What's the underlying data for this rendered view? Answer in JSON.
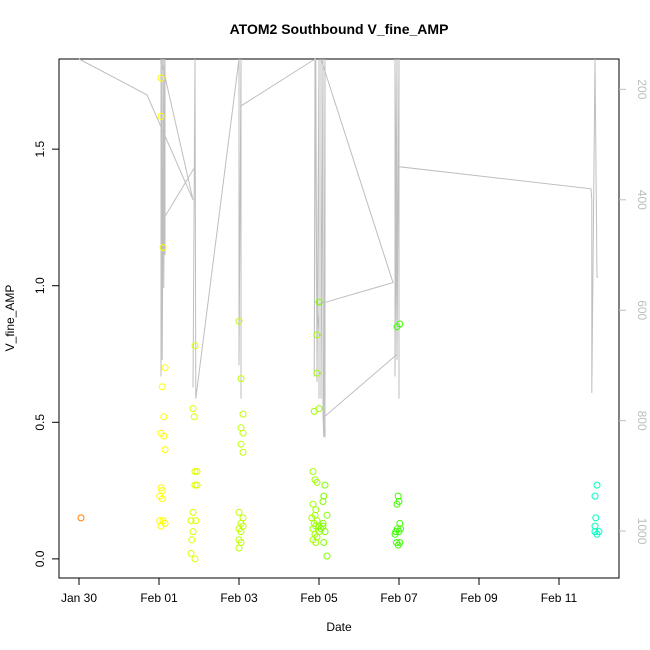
{
  "chart_data": {
    "type": "scatter",
    "title": "ATOM2 Southbound V_fine_AMP",
    "xlabel": "Date",
    "ylabel": "V_fine_AMP",
    "xlim": [
      -2.5,
      11.5
    ],
    "ylim": [
      -0.07,
      1.83
    ],
    "x_unit_note": "Jan 30 = -2, Feb 01 = 0, Feb 03 = 2 ...",
    "x_ticks": [
      {
        "v": -2,
        "label": "Jan 30"
      },
      {
        "v": 0,
        "label": "Feb 01"
      },
      {
        "v": 2,
        "label": "Feb 03"
      },
      {
        "v": 4,
        "label": "Feb 05"
      },
      {
        "v": 6,
        "label": "Feb 07"
      },
      {
        "v": 8,
        "label": "Feb 09"
      },
      {
        "v": 10,
        "label": "Feb 11"
      }
    ],
    "y_ticks": [
      {
        "v": 0.0,
        "label": "0.0"
      },
      {
        "v": 0.5,
        "label": "0.5"
      },
      {
        "v": 1.0,
        "label": "1.0"
      },
      {
        "v": 1.5,
        "label": "1.5"
      }
    ],
    "right_axis": {
      "lim": [
        1085,
        145
      ],
      "ticks": [
        {
          "v": 200,
          "label": "200"
        },
        {
          "v": 400,
          "label": "400"
        },
        {
          "v": 600,
          "label": "600"
        },
        {
          "v": 800,
          "label": "800"
        },
        {
          "v": 1000,
          "label": "1000"
        }
      ],
      "color": "#bebebe"
    },
    "series": [
      {
        "color": "#ff7f00",
        "points": [
          [
            -1.95,
            0.15
          ]
        ]
      },
      {
        "color": "#ffff00",
        "points": [
          [
            0.05,
            1.76
          ],
          [
            0.05,
            1.62
          ],
          [
            0.1,
            1.14
          ],
          [
            0.08,
            0.63
          ],
          [
            0.15,
            0.7
          ],
          [
            0.12,
            0.52
          ],
          [
            0.05,
            0.46
          ],
          [
            0.12,
            0.45
          ],
          [
            0.15,
            0.4
          ],
          [
            0.05,
            0.26
          ],
          [
            0.08,
            0.25
          ],
          [
            0.02,
            0.23
          ],
          [
            0.08,
            0.22
          ],
          [
            0.02,
            0.14
          ],
          [
            0.1,
            0.14
          ],
          [
            0.15,
            0.13
          ],
          [
            0.05,
            0.12
          ]
        ]
      },
      {
        "color": "#dfff00",
        "points": [
          [
            0.9,
            0.78
          ],
          [
            0.85,
            0.55
          ],
          [
            0.88,
            0.52
          ],
          [
            0.9,
            0.32
          ],
          [
            0.95,
            0.32
          ],
          [
            0.9,
            0.27
          ],
          [
            0.95,
            0.27
          ],
          [
            0.85,
            0.17
          ],
          [
            0.8,
            0.14
          ],
          [
            0.92,
            0.14
          ],
          [
            0.85,
            0.1
          ],
          [
            0.82,
            0.07
          ],
          [
            0.8,
            0.02
          ],
          [
            0.9,
            0.0
          ]
        ]
      },
      {
        "color": "#bfff00",
        "points": [
          [
            2.0,
            0.87
          ],
          [
            2.05,
            0.66
          ],
          [
            2.1,
            0.53
          ],
          [
            2.05,
            0.48
          ],
          [
            2.1,
            0.46
          ],
          [
            2.05,
            0.42
          ],
          [
            2.1,
            0.39
          ],
          [
            2.0,
            0.17
          ],
          [
            2.1,
            0.15
          ],
          [
            2.05,
            0.13
          ],
          [
            2.1,
            0.12
          ],
          [
            2.0,
            0.11
          ],
          [
            2.05,
            0.1
          ],
          [
            2.0,
            0.07
          ],
          [
            2.05,
            0.06
          ],
          [
            2.0,
            0.04
          ]
        ]
      },
      {
        "color": "#9fff00",
        "points": [
          [
            3.95,
            0.82
          ],
          [
            3.95,
            0.68
          ],
          [
            4.0,
            0.55
          ],
          [
            3.88,
            0.54
          ],
          [
            3.85,
            0.32
          ],
          [
            3.9,
            0.29
          ],
          [
            3.95,
            0.28
          ],
          [
            3.85,
            0.2
          ],
          [
            3.92,
            0.18
          ],
          [
            3.9,
            0.16
          ],
          [
            3.82,
            0.15
          ],
          [
            3.95,
            0.14
          ],
          [
            3.88,
            0.13
          ],
          [
            3.92,
            0.12
          ],
          [
            3.85,
            0.11
          ],
          [
            4.0,
            0.1
          ],
          [
            3.9,
            0.09
          ],
          [
            3.95,
            0.08
          ],
          [
            3.85,
            0.07
          ],
          [
            3.92,
            0.06
          ]
        ]
      },
      {
        "color": "#7fff00",
        "points": [
          [
            4.0,
            0.94
          ],
          [
            4.15,
            0.27
          ],
          [
            4.12,
            0.23
          ],
          [
            4.1,
            0.21
          ],
          [
            4.2,
            0.16
          ],
          [
            4.1,
            0.13
          ],
          [
            4.0,
            0.12
          ],
          [
            4.05,
            0.11
          ],
          [
            4.1,
            0.12
          ],
          [
            4.15,
            0.1
          ],
          [
            4.12,
            0.06
          ],
          [
            4.2,
            0.01
          ]
        ]
      },
      {
        "color": "#3fff00",
        "points": [
          [
            5.95,
            0.85
          ],
          [
            6.02,
            0.86
          ],
          [
            5.98,
            0.23
          ],
          [
            6.0,
            0.21
          ],
          [
            5.95,
            0.2
          ],
          [
            6.02,
            0.13
          ],
          [
            5.92,
            0.1
          ],
          [
            5.96,
            0.11
          ],
          [
            6.0,
            0.1
          ],
          [
            6.04,
            0.11
          ],
          [
            5.9,
            0.09
          ],
          [
            5.94,
            0.06
          ],
          [
            5.98,
            0.05
          ],
          [
            6.02,
            0.06
          ]
        ]
      },
      {
        "color": "#00ffbf",
        "points": [
          [
            10.95,
            0.27
          ],
          [
            10.9,
            0.23
          ],
          [
            10.92,
            0.15
          ],
          [
            10.9,
            0.12
          ],
          [
            11.0,
            0.1
          ],
          [
            10.95,
            0.09
          ],
          [
            10.9,
            0.1
          ]
        ]
      }
    ],
    "line_series": {
      "color": "#bebebe",
      "points": [
        [
          -2.0,
          145
        ],
        [
          -0.3,
          210
        ],
        [
          0.85,
          400
        ],
        [
          0.05,
          145
        ],
        [
          0.05,
          720
        ],
        [
          0.08,
          145
        ],
        [
          0.08,
          690
        ],
        [
          0.12,
          145
        ],
        [
          0.12,
          560
        ],
        [
          0.15,
          145
        ],
        [
          0.15,
          500
        ],
        [
          0.15,
          430
        ],
        [
          0.9,
          340
        ],
        [
          0.9,
          145
        ],
        [
          0.85,
          740
        ],
        [
          0.9,
          145
        ],
        [
          0.92,
          760
        ],
        [
          2.0,
          145
        ],
        [
          2.0,
          700
        ],
        [
          2.05,
          145
        ],
        [
          2.05,
          760
        ],
        [
          2.05,
          230
        ],
        [
          3.9,
          145
        ],
        [
          3.88,
          720
        ],
        [
          3.92,
          145
        ],
        [
          3.95,
          730
        ],
        [
          4.0,
          145
        ],
        [
          4.0,
          760
        ],
        [
          4.0,
          640
        ],
        [
          3.95,
          590
        ],
        [
          5.85,
          550
        ],
        [
          4.05,
          145
        ],
        [
          4.05,
          760
        ],
        [
          4.1,
          145
        ],
        [
          4.1,
          790
        ],
        [
          4.12,
          830
        ],
        [
          4.15,
          145
        ],
        [
          4.15,
          830
        ],
        [
          4.1,
          795
        ],
        [
          5.95,
          680
        ],
        [
          5.9,
          145
        ],
        [
          5.9,
          720
        ],
        [
          5.95,
          145
        ],
        [
          5.95,
          690
        ],
        [
          6.0,
          145
        ],
        [
          6.0,
          760
        ],
        [
          6.0,
          340
        ],
        [
          10.8,
          380
        ],
        [
          10.82,
          400
        ],
        [
          10.82,
          750
        ],
        [
          10.9,
          145
        ],
        [
          10.95,
          540
        ],
        [
          10.98,
          540
        ]
      ]
    }
  }
}
